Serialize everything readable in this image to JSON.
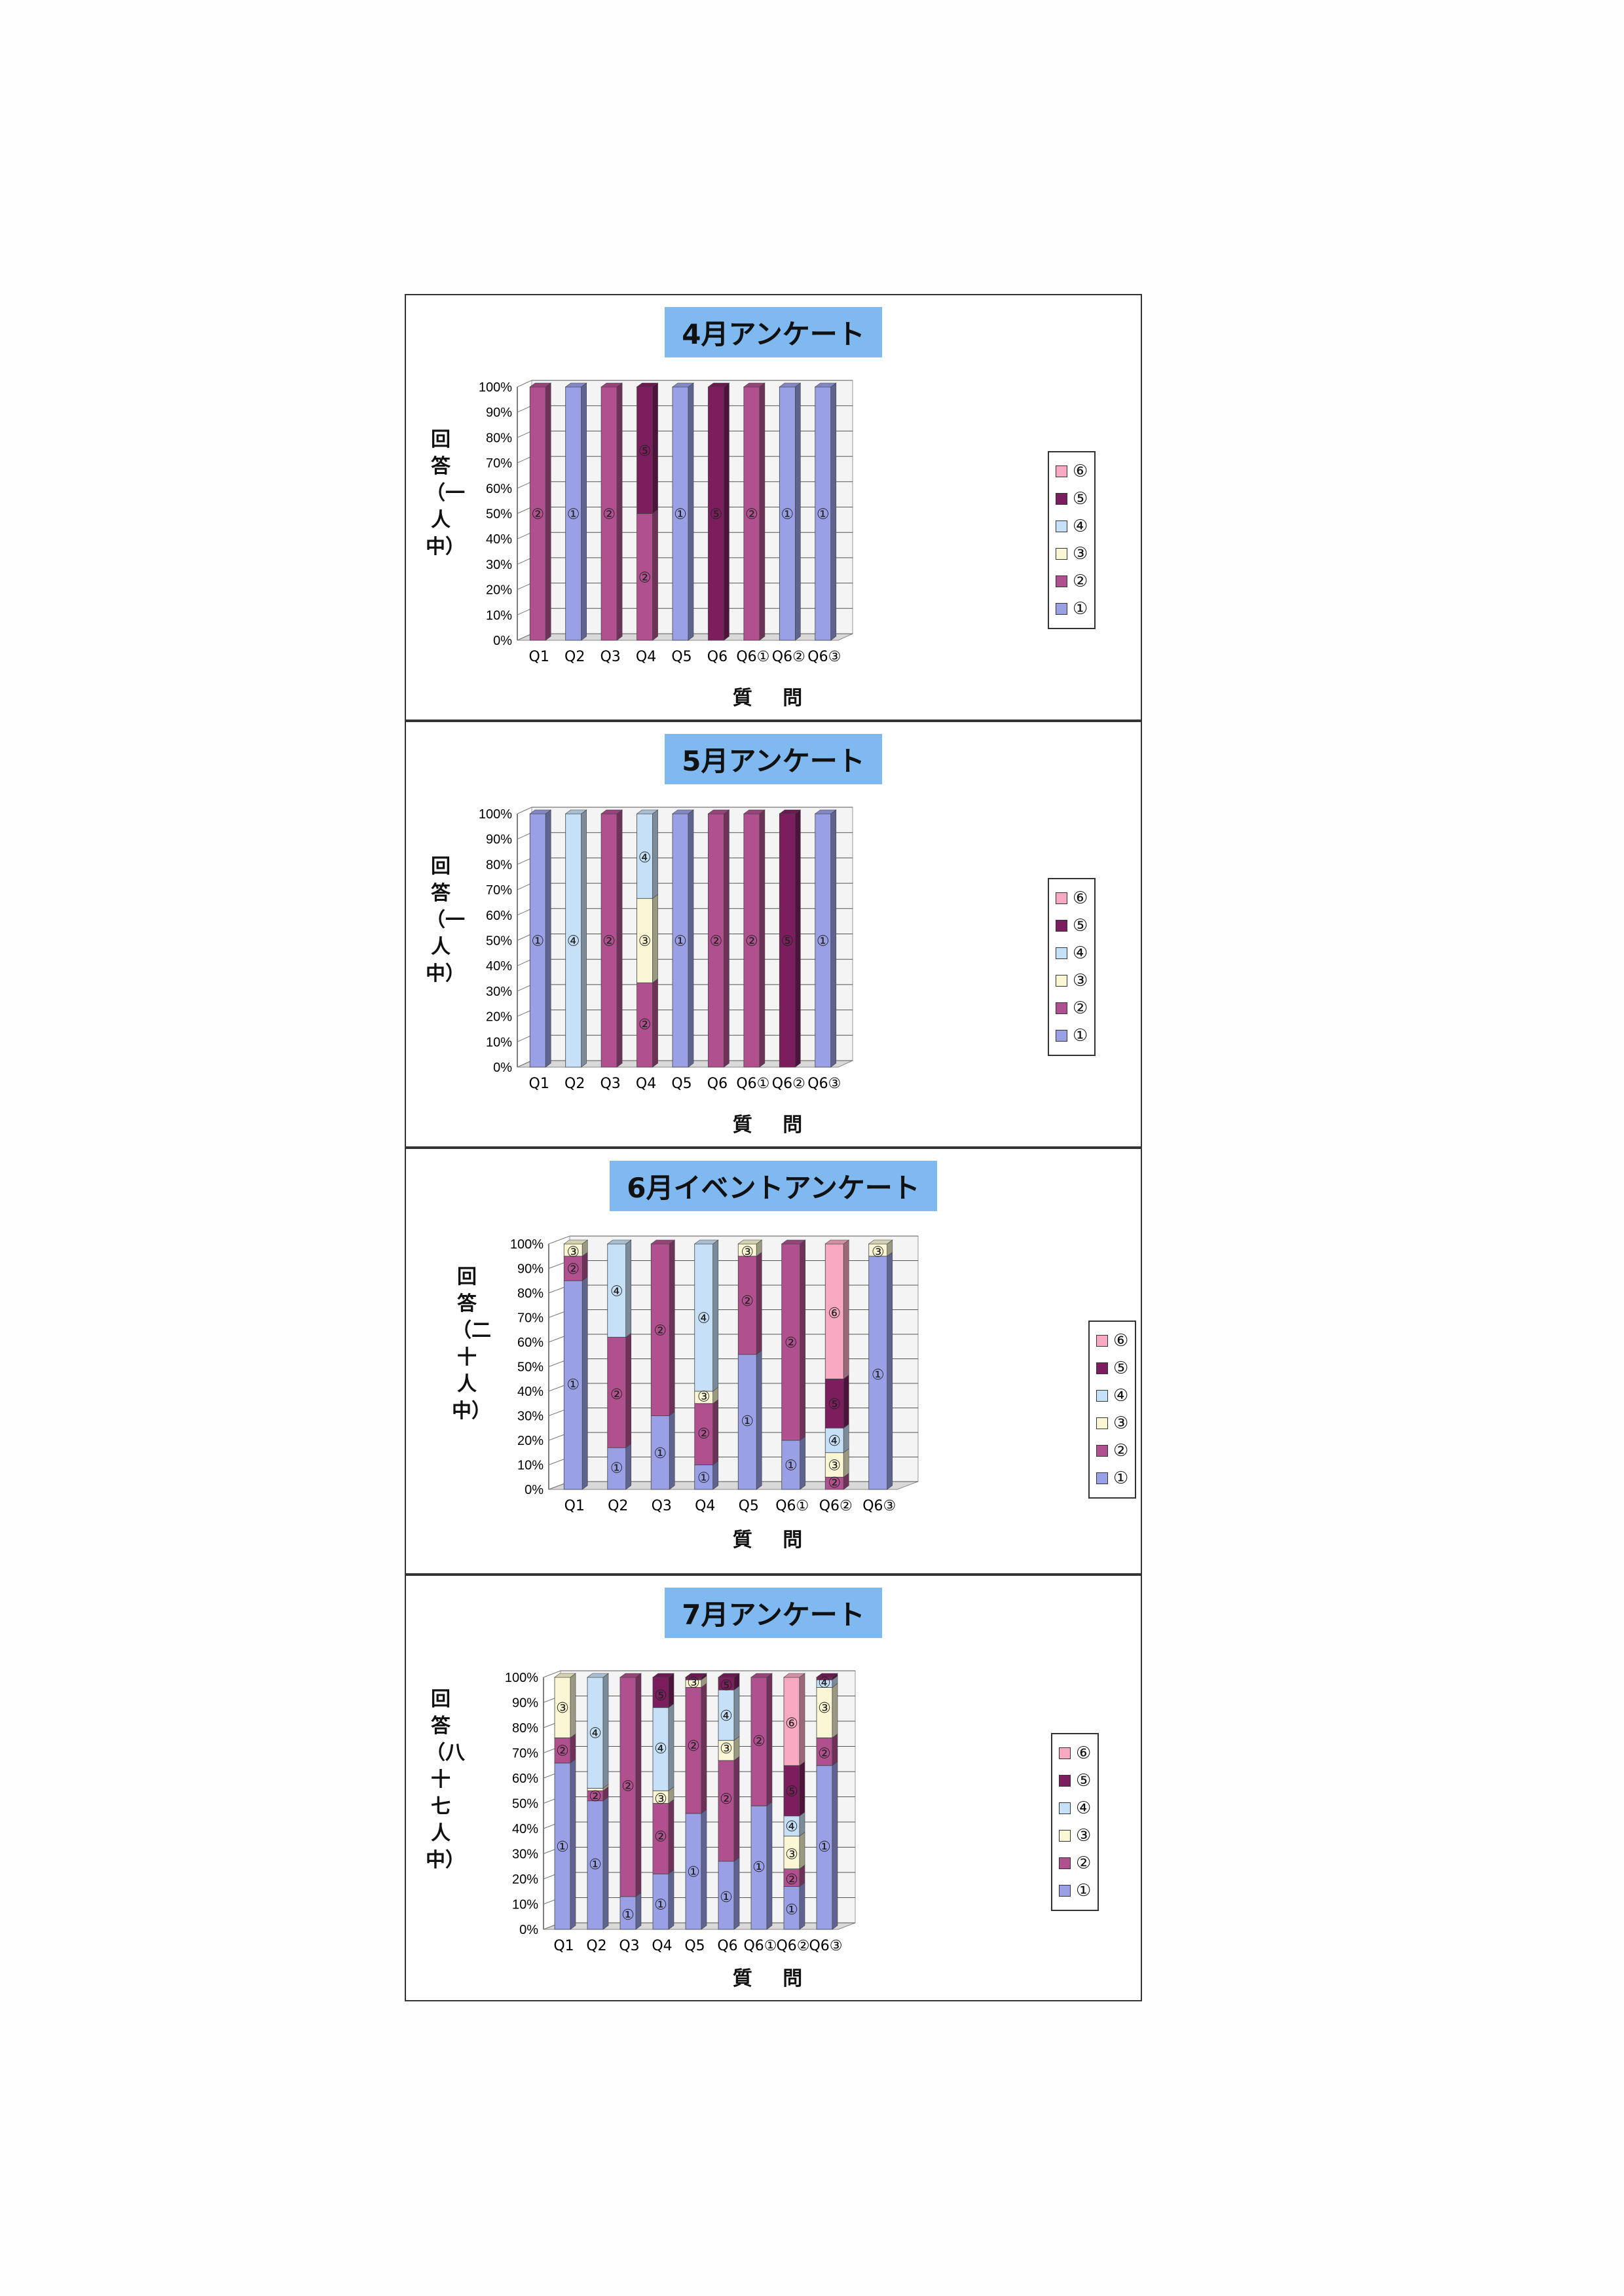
{
  "legend_labels": [
    "⑥",
    "⑤",
    "④",
    "③",
    "②",
    "①"
  ],
  "chart_data": [
    {
      "type": "bar",
      "stacked": true,
      "title": "4月アンケート",
      "ylabel": "回答（一人中）",
      "xlabel": "質 問",
      "categories": [
        "Q1",
        "Q2",
        "Q3",
        "Q4",
        "Q5",
        "Q6",
        "Q6①",
        "Q6②",
        "Q6③"
      ],
      "yticks": [
        "0%",
        "10%",
        "20%",
        "30%",
        "40%",
        "50%",
        "60%",
        "70%",
        "80%",
        "90%",
        "100%"
      ],
      "ylim": [
        0,
        100
      ],
      "legend_position": "right",
      "grid": true,
      "series": [
        {
          "name": "①",
          "color": "#9aa0e6",
          "values": [
            0,
            100,
            0,
            0,
            100,
            0,
            0,
            100,
            100
          ]
        },
        {
          "name": "②",
          "color": "#b1508f",
          "values": [
            100,
            0,
            100,
            50,
            0,
            0,
            100,
            0,
            0
          ]
        },
        {
          "name": "③",
          "color": "#fbf6d3",
          "values": [
            0,
            0,
            0,
            0,
            0,
            0,
            0,
            0,
            0
          ]
        },
        {
          "name": "④",
          "color": "#c6e0f8",
          "values": [
            0,
            0,
            0,
            0,
            0,
            0,
            0,
            0,
            0
          ]
        },
        {
          "name": "⑤",
          "color": "#7c1e5e",
          "values": [
            0,
            0,
            0,
            50,
            0,
            100,
            0,
            0,
            0
          ]
        },
        {
          "name": "⑥",
          "color": "#f8a8c0",
          "values": [
            0,
            0,
            0,
            0,
            0,
            0,
            0,
            0,
            0
          ]
        }
      ],
      "data_labels": [
        [
          [
            "②",
            50
          ]
        ],
        [
          [
            "①",
            50
          ]
        ],
        [
          [
            "②",
            50
          ]
        ],
        [
          [
            "⑤",
            75
          ],
          [
            "②",
            25
          ]
        ],
        [
          [
            "①",
            50
          ]
        ],
        [
          [
            "⑤",
            50
          ]
        ],
        [
          [
            "②",
            50
          ]
        ],
        [
          [
            "①",
            50
          ]
        ],
        [
          [
            "①",
            50
          ]
        ]
      ]
    },
    {
      "type": "bar",
      "stacked": true,
      "title": "5月アンケート",
      "ylabel": "回答（一人中）",
      "xlabel": "質 問",
      "categories": [
        "Q1",
        "Q2",
        "Q3",
        "Q4",
        "Q5",
        "Q6",
        "Q6①",
        "Q6②",
        "Q6③"
      ],
      "yticks": [
        "0%",
        "10%",
        "20%",
        "30%",
        "40%",
        "50%",
        "60%",
        "70%",
        "80%",
        "90%",
        "100%"
      ],
      "ylim": [
        0,
        100
      ],
      "legend_position": "right",
      "grid": true,
      "series": [
        {
          "name": "①",
          "color": "#9aa0e6",
          "values": [
            100,
            0,
            0,
            0,
            100,
            0,
            0,
            0,
            100
          ]
        },
        {
          "name": "②",
          "color": "#b1508f",
          "values": [
            0,
            0,
            100,
            33.3,
            0,
            100,
            100,
            0,
            0
          ]
        },
        {
          "name": "③",
          "color": "#fbf6d3",
          "values": [
            0,
            0,
            0,
            33.3,
            0,
            0,
            0,
            0,
            0
          ]
        },
        {
          "name": "④",
          "color": "#c6e0f8",
          "values": [
            0,
            100,
            0,
            33.4,
            0,
            0,
            0,
            0,
            0
          ]
        },
        {
          "name": "⑤",
          "color": "#7c1e5e",
          "values": [
            0,
            0,
            0,
            0,
            0,
            0,
            0,
            100,
            0
          ]
        },
        {
          "name": "⑥",
          "color": "#f8a8c0",
          "values": [
            0,
            0,
            0,
            0,
            0,
            0,
            0,
            0,
            0
          ]
        }
      ],
      "data_labels": [
        [
          [
            "①",
            50
          ]
        ],
        [
          [
            "④",
            50
          ]
        ],
        [
          [
            "②",
            50
          ]
        ],
        [
          [
            "④",
            83
          ],
          [
            "③",
            50
          ],
          [
            "②",
            17
          ]
        ],
        [
          [
            "①",
            50
          ]
        ],
        [
          [
            "②",
            50
          ]
        ],
        [
          [
            "②",
            50
          ]
        ],
        [
          [
            "⑤",
            50
          ]
        ],
        [
          [
            "①",
            50
          ]
        ]
      ]
    },
    {
      "type": "bar",
      "stacked": true,
      "title": "6月イベントアンケート",
      "ylabel": "回答（二十人中）",
      "xlabel": "質 問",
      "categories": [
        "Q1",
        "Q2",
        "Q3",
        "Q4",
        "Q5",
        "Q6①",
        "Q6②",
        "Q6③"
      ],
      "yticks": [
        "0%",
        "10%",
        "20%",
        "30%",
        "40%",
        "50%",
        "60%",
        "70%",
        "80%",
        "90%",
        "100%"
      ],
      "ylim": [
        0,
        100
      ],
      "legend_position": "right",
      "grid": true,
      "series": [
        {
          "name": "①",
          "color": "#9aa0e6",
          "values": [
            85,
            17,
            30,
            10,
            55,
            20,
            0,
            95
          ]
        },
        {
          "name": "②",
          "color": "#b1508f",
          "values": [
            10,
            45,
            70,
            25,
            40,
            80,
            5,
            0
          ]
        },
        {
          "name": "③",
          "color": "#fbf6d3",
          "values": [
            5,
            0,
            0,
            5,
            5,
            0,
            10,
            5
          ]
        },
        {
          "name": "④",
          "color": "#c6e0f8",
          "values": [
            0,
            38,
            0,
            60,
            0,
            0,
            10,
            0
          ]
        },
        {
          "name": "⑤",
          "color": "#7c1e5e",
          "values": [
            0,
            0,
            0,
            0,
            0,
            0,
            20,
            0
          ]
        },
        {
          "name": "⑥",
          "color": "#f8a8c0",
          "values": [
            0,
            0,
            0,
            0,
            0,
            0,
            55,
            0
          ]
        }
      ],
      "data_labels": [
        [
          [
            "③",
            97
          ],
          [
            "②",
            90
          ],
          [
            "①",
            43
          ]
        ],
        [
          [
            "④",
            81
          ],
          [
            "②",
            39
          ],
          [
            "①",
            9
          ]
        ],
        [
          [
            "②",
            65
          ],
          [
            "①",
            15
          ]
        ],
        [
          [
            "④",
            70
          ],
          [
            "③",
            38
          ],
          [
            "②",
            23
          ],
          [
            "①",
            5
          ]
        ],
        [
          [
            "③",
            97
          ],
          [
            "②",
            77
          ],
          [
            "①",
            28
          ]
        ],
        [
          [
            "②",
            60
          ],
          [
            "①",
            10
          ]
        ],
        [
          [
            "⑥",
            72
          ],
          [
            "⑤",
            35
          ],
          [
            "④",
            20
          ],
          [
            "③",
            10
          ],
          [
            "②",
            3
          ]
        ],
        [
          [
            "③",
            97
          ],
          [
            "①",
            47
          ]
        ]
      ]
    },
    {
      "type": "bar",
      "stacked": true,
      "title": "7月アンケート",
      "ylabel": "回答（八十七人中）",
      "xlabel": "質 問",
      "categories": [
        "Q1",
        "Q2",
        "Q3",
        "Q4",
        "Q5",
        "Q6",
        "Q6①",
        "Q6②",
        "Q6③"
      ],
      "yticks": [
        "0%",
        "10%",
        "20%",
        "30%",
        "40%",
        "50%",
        "60%",
        "70%",
        "80%",
        "90%",
        "100%"
      ],
      "ylim": [
        0,
        100
      ],
      "legend_position": "right",
      "grid": true,
      "series": [
        {
          "name": "①",
          "color": "#9aa0e6",
          "values": [
            66,
            51,
            13,
            22,
            46,
            27,
            49,
            17,
            65
          ]
        },
        {
          "name": "②",
          "color": "#b1508f",
          "values": [
            10,
            4,
            87,
            28,
            50,
            40,
            51,
            7,
            11
          ]
        },
        {
          "name": "③",
          "color": "#fbf6d3",
          "values": [
            24,
            1,
            0,
            5,
            3,
            8,
            0,
            13,
            20
          ]
        },
        {
          "name": "④",
          "color": "#c6e0f8",
          "values": [
            0,
            44,
            0,
            33,
            0,
            20,
            0,
            8,
            3
          ]
        },
        {
          "name": "⑤",
          "color": "#7c1e5e",
          "values": [
            0,
            0,
            0,
            12,
            1,
            5,
            0,
            20,
            1
          ]
        },
        {
          "name": "⑥",
          "color": "#f8a8c0",
          "values": [
            0,
            0,
            0,
            0,
            0,
            0,
            0,
            35,
            0
          ]
        }
      ],
      "data_labels": [
        [
          [
            "③",
            88
          ],
          [
            "②",
            71
          ],
          [
            "①",
            33
          ]
        ],
        [
          [
            "④",
            78
          ],
          [
            "②",
            53
          ],
          [
            "①",
            26
          ]
        ],
        [
          [
            "②",
            57
          ],
          [
            "①",
            6
          ]
        ],
        [
          [
            "⑤",
            93
          ],
          [
            "④",
            72
          ],
          [
            "③",
            52
          ],
          [
            "②",
            37
          ],
          [
            "①",
            10
          ]
        ],
        [
          [
            "③",
            98
          ],
          [
            "②",
            73
          ],
          [
            "①",
            23
          ]
        ],
        [
          [
            "⑤",
            97
          ],
          [
            "④",
            85
          ],
          [
            "③",
            72
          ],
          [
            "②",
            52
          ],
          [
            "①",
            13
          ]
        ],
        [
          [
            "②",
            75
          ],
          [
            "①",
            25
          ]
        ],
        [
          [
            "⑥",
            82
          ],
          [
            "⑤",
            55
          ],
          [
            "④",
            41
          ],
          [
            "③",
            30
          ],
          [
            "②",
            20
          ],
          [
            "①",
            8
          ]
        ],
        [
          [
            "④",
            98
          ],
          [
            "③",
            88
          ],
          [
            "②",
            70
          ],
          [
            "①",
            33
          ]
        ]
      ]
    }
  ]
}
